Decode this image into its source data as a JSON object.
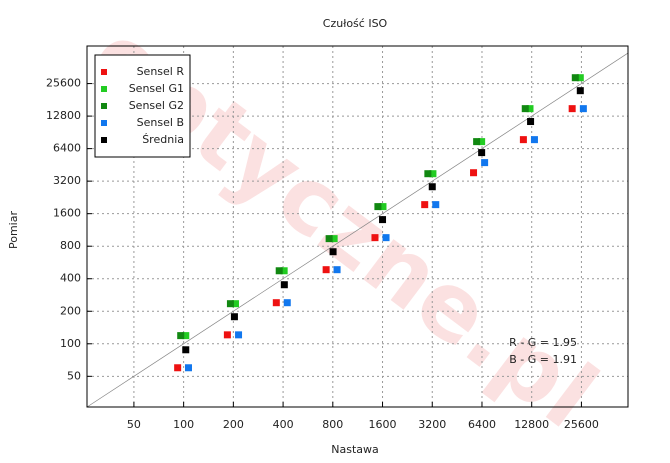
{
  "chart_data": {
    "type": "scatter",
    "title": "Czułość ISO",
    "xlabel": "Nastawa",
    "ylabel": "Pomiar",
    "xscale": "log",
    "yscale": "log",
    "grid": true,
    "legend": "upper left",
    "watermark": "optyczne.pl",
    "annotations": [
      "R - G = 1.95",
      "B - G = 1.91"
    ],
    "xlim": [
      26,
      49000
    ],
    "ylim": [
      26,
      57000
    ],
    "xticks": [
      50,
      100,
      200,
      400,
      800,
      1600,
      3200,
      6400,
      12800,
      25600
    ],
    "yticks": [
      50,
      100,
      200,
      400,
      800,
      1600,
      3200,
      6400,
      12800,
      25600
    ],
    "series": [
      {
        "name": "Sensel R",
        "color": "#ee1111",
        "x": [
          92,
          184,
          364,
          729,
          1440,
          2880,
          5690,
          11400,
          22500
        ],
        "values": [
          60,
          121,
          240,
          485,
          960,
          1940,
          3830,
          7750,
          15000
        ]
      },
      {
        "name": "Sensel G1",
        "color": "#22cc22",
        "x": [
          103,
          206,
          406,
          815,
          1610,
          3230,
          6370,
          12500,
          25200
        ],
        "values": [
          119,
          235,
          474,
          940,
          1860,
          3750,
          7430,
          15000,
          29000
        ]
      },
      {
        "name": "Sensel G2",
        "color": "#118811",
        "x": [
          96,
          192,
          379,
          760,
          1500,
          3010,
          5940,
          11700,
          23500
        ],
        "values": [
          119,
          235,
          474,
          940,
          1860,
          3750,
          7430,
          15000,
          29000
        ]
      },
      {
        "name": "Sensel B",
        "color": "#1177ee",
        "x": [
          107,
          215,
          424,
          849,
          1680,
          3360,
          6640,
          13300,
          26300
        ],
        "values": [
          60,
          121,
          240,
          485,
          960,
          1940,
          4750,
          7750,
          15000
        ]
      },
      {
        "name": "Średnia",
        "color": "#000000",
        "x": [
          103,
          203,
          407,
          803,
          1600,
          3200,
          6370,
          12600,
          25200
        ],
        "values": [
          88,
          178,
          352,
          711,
          1410,
          2840,
          5880,
          11400,
          22000
        ]
      }
    ]
  }
}
